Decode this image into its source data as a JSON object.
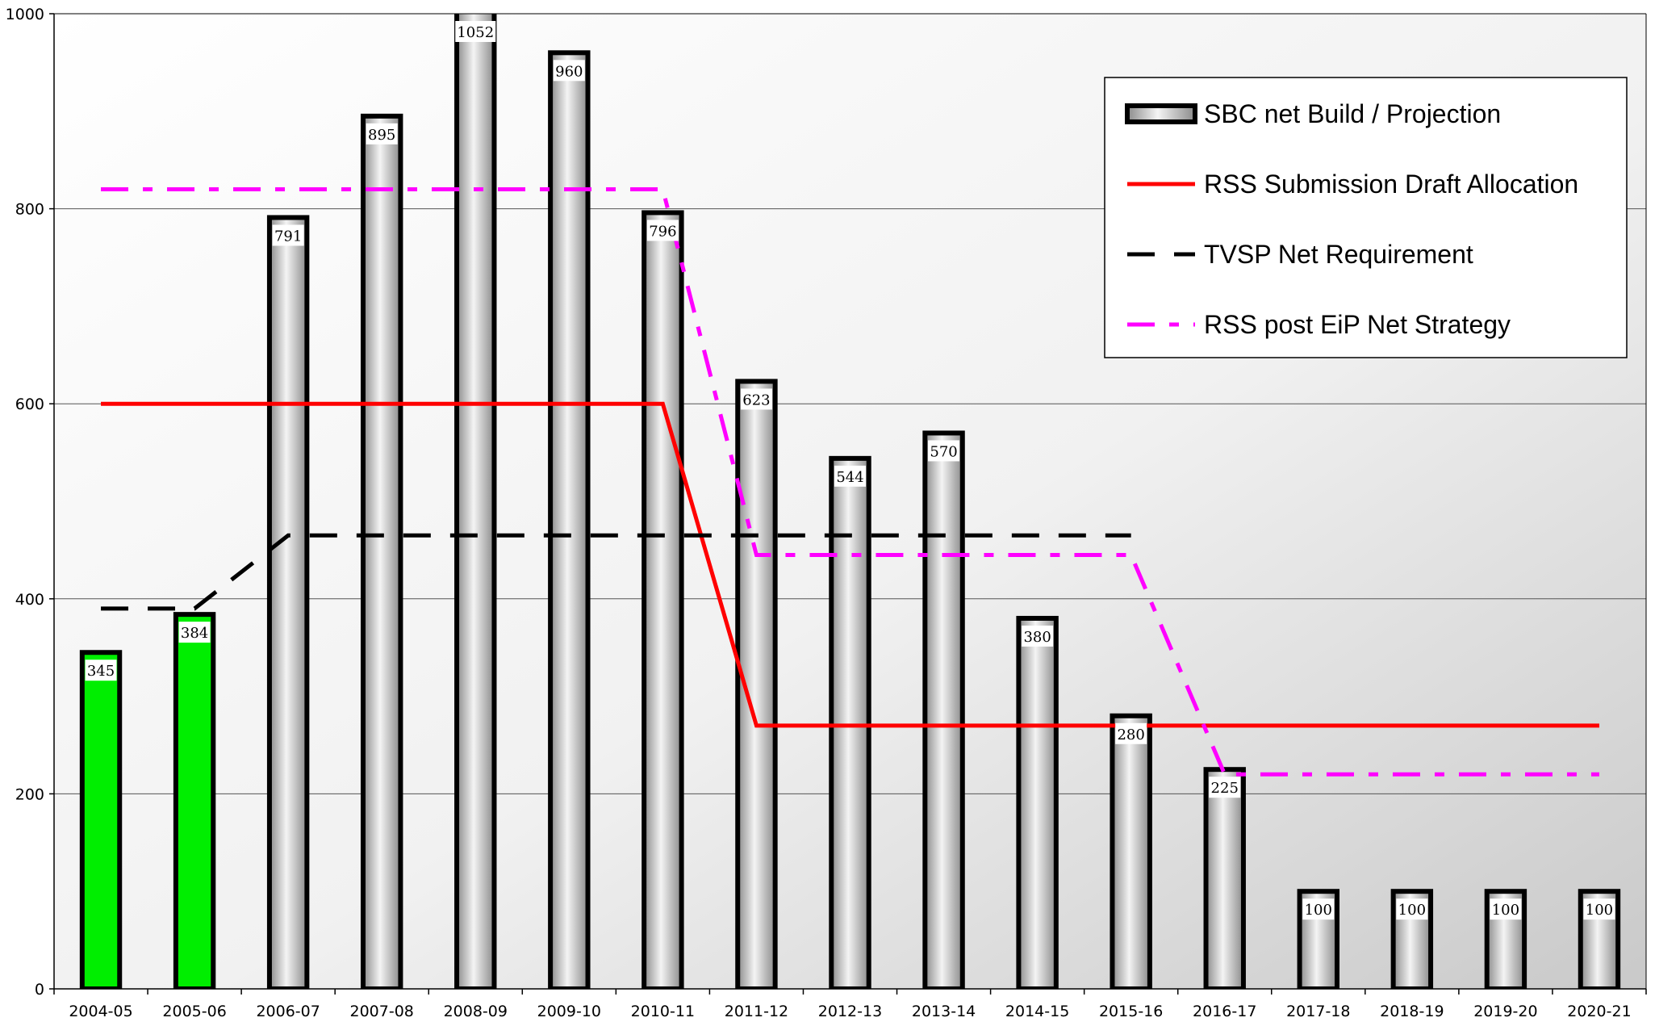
{
  "chart_data": {
    "type": "bar",
    "title": "",
    "xlabel": "",
    "ylabel": "",
    "ylim": [
      0,
      1000
    ],
    "yticks": [
      0,
      200,
      400,
      600,
      800,
      1000
    ],
    "grid": true,
    "legend_position": "top-right",
    "categories": [
      "2004-05",
      "2005-06",
      "2006-07",
      "2007-08",
      "2008-09",
      "2009-10",
      "2010-11",
      "2011-12",
      "2012-13",
      "2013-14",
      "2014-15",
      "2015-16",
      "2016-17",
      "2017-18",
      "2018-19",
      "2019-20",
      "2020-21"
    ],
    "bars": {
      "name": "SBC net Build / Projection",
      "values": [
        345,
        384,
        791,
        895,
        1052,
        960,
        796,
        623,
        544,
        570,
        380,
        280,
        225,
        100,
        100,
        100,
        100
      ],
      "colors": [
        "#00ee00",
        "#00ee00",
        "#c8c8c8",
        "#c8c8c8",
        "#c8c8c8",
        "#c8c8c8",
        "#c8c8c8",
        "#c8c8c8",
        "#c8c8c8",
        "#c8c8c8",
        "#c8c8c8",
        "#c8c8c8",
        "#c8c8c8",
        "#c8c8c8",
        "#c8c8c8",
        "#c8c8c8",
        "#c8c8c8"
      ]
    },
    "lines": [
      {
        "name": "RSS Submission Draft Allocation",
        "color": "#ff0000",
        "style": "solid",
        "points": [
          [
            "2004-05",
            600
          ],
          [
            "2010-11",
            600
          ],
          [
            "2011-12",
            270
          ],
          [
            "2020-21",
            270
          ]
        ]
      },
      {
        "name": "TVSP Net Requirement",
        "color": "#000000",
        "style": "dashed",
        "points": [
          [
            "2004-05",
            390
          ],
          [
            "2005-06",
            390
          ],
          [
            "2006-07",
            465
          ],
          [
            "2015-16",
            465
          ]
        ]
      },
      {
        "name": "RSS post EiP Net Strategy",
        "color": "#ff00ff",
        "style": "dash-dot",
        "points": [
          [
            "2004-05",
            820
          ],
          [
            "2010-11",
            820
          ],
          [
            "2011-12",
            445
          ],
          [
            "2015-16",
            445
          ],
          [
            "2016-17",
            220
          ],
          [
            "2020-21",
            220
          ]
        ]
      }
    ],
    "legend": [
      {
        "label": "SBC net Build / Projection",
        "kind": "bar"
      },
      {
        "label": "RSS Submission Draft Allocation",
        "kind": "solid",
        "color": "#ff0000"
      },
      {
        "label": "TVSP Net Requirement",
        "kind": "dashed",
        "color": "#000000"
      },
      {
        "label": "RSS post EiP Net Strategy",
        "kind": "dash-dot",
        "color": "#ff00ff"
      }
    ]
  }
}
